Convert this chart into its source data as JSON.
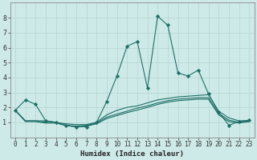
{
  "xlabel": "Humidex (Indice chaleur)",
  "bg_color": "#ceeae8",
  "grid_color": "#b8d8d5",
  "line_color": "#1e7068",
  "xlim": [
    -0.5,
    23.5
  ],
  "ylim": [
    0,
    9
  ],
  "xticks": [
    0,
    1,
    2,
    3,
    4,
    5,
    6,
    7,
    8,
    9,
    10,
    11,
    12,
    13,
    14,
    15,
    16,
    17,
    18,
    19,
    20,
    21,
    22,
    23
  ],
  "yticks": [
    1,
    2,
    3,
    4,
    5,
    6,
    7,
    8
  ],
  "lines": [
    {
      "x": [
        0,
        1,
        2,
        3,
        4,
        5,
        6,
        7,
        8,
        9,
        10,
        11,
        12,
        13,
        14,
        15,
        16,
        17,
        18,
        19,
        20,
        21,
        22,
        23
      ],
      "y": [
        1.8,
        2.5,
        2.2,
        1.1,
        1.0,
        0.8,
        0.7,
        0.7,
        1.0,
        2.4,
        4.1,
        6.1,
        6.4,
        3.3,
        8.1,
        7.5,
        4.3,
        4.1,
        4.5,
        2.9,
        1.7,
        0.8,
        1.05,
        1.15
      ],
      "marker": true
    },
    {
      "x": [
        0,
        1,
        2,
        3,
        4,
        5,
        6,
        7,
        8,
        9,
        10,
        11,
        12,
        13,
        14,
        15,
        16,
        17,
        18,
        19,
        20,
        21,
        22,
        23
      ],
      "y": [
        1.8,
        1.1,
        1.1,
        1.1,
        1.0,
        0.9,
        0.85,
        0.85,
        1.0,
        1.5,
        1.8,
        2.0,
        2.1,
        2.3,
        2.5,
        2.6,
        2.7,
        2.75,
        2.8,
        2.85,
        1.75,
        1.3,
        1.1,
        1.1
      ],
      "marker": false
    },
    {
      "x": [
        0,
        1,
        2,
        3,
        4,
        5,
        6,
        7,
        8,
        9,
        10,
        11,
        12,
        13,
        14,
        15,
        16,
        17,
        18,
        19,
        20,
        21,
        22,
        23
      ],
      "y": [
        1.8,
        1.1,
        1.1,
        1.0,
        1.0,
        0.8,
        0.75,
        0.8,
        0.95,
        1.35,
        1.55,
        1.75,
        1.95,
        2.1,
        2.3,
        2.45,
        2.55,
        2.6,
        2.65,
        2.65,
        1.6,
        1.15,
        1.0,
        1.1
      ],
      "marker": false
    },
    {
      "x": [
        0,
        1,
        2,
        3,
        4,
        5,
        6,
        7,
        8,
        9,
        10,
        11,
        12,
        13,
        14,
        15,
        16,
        17,
        18,
        19,
        20,
        21,
        22,
        23
      ],
      "y": [
        1.8,
        1.05,
        1.05,
        0.95,
        0.95,
        0.78,
        0.7,
        0.75,
        0.9,
        1.25,
        1.45,
        1.65,
        1.82,
        2.0,
        2.2,
        2.35,
        2.45,
        2.5,
        2.55,
        2.55,
        1.5,
        1.05,
        0.95,
        1.05
      ],
      "marker": false
    }
  ]
}
